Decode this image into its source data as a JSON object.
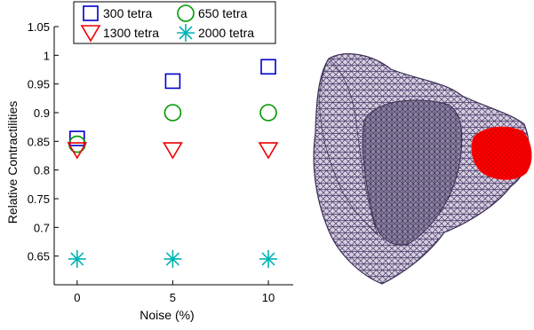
{
  "chart_data": {
    "type": "scatter",
    "title": "",
    "xlabel": "Noise (%)",
    "ylabel": "Relative Contractilities",
    "x_ticks": [
      "0",
      "5",
      "10"
    ],
    "y_ticks": [
      "0.65",
      "0.7",
      "0.75",
      "0.8",
      "0.85",
      "0.9",
      "0.95",
      "1",
      "1.05"
    ],
    "xlim": [
      -1.2,
      11.3
    ],
    "ylim": [
      0.6,
      1.05
    ],
    "grid": false,
    "legend_position": "top",
    "series": [
      {
        "name": "300 tetra",
        "marker": "square",
        "color": "#0000cc",
        "x": [
          0,
          5,
          10
        ],
        "y": [
          0.855,
          0.955,
          0.98
        ]
      },
      {
        "name": "650 tetra",
        "marker": "circle",
        "color": "#009900",
        "x": [
          0,
          5,
          10
        ],
        "y": [
          0.845,
          0.9,
          0.9
        ]
      },
      {
        "name": "1300 tetra",
        "marker": "triangle-down",
        "color": "#ee0000",
        "x": [
          0,
          5,
          10
        ],
        "y": [
          0.835,
          0.835,
          0.835
        ]
      },
      {
        "name": "2000 tetra",
        "marker": "asterisk",
        "color": "#00b3b3",
        "x": [
          0,
          5,
          10
        ],
        "y": [
          0.645,
          0.645,
          0.645
        ]
      }
    ]
  },
  "heart_image": {
    "mesh_color": "#5a4a7a",
    "region_color": "#ff0000"
  }
}
